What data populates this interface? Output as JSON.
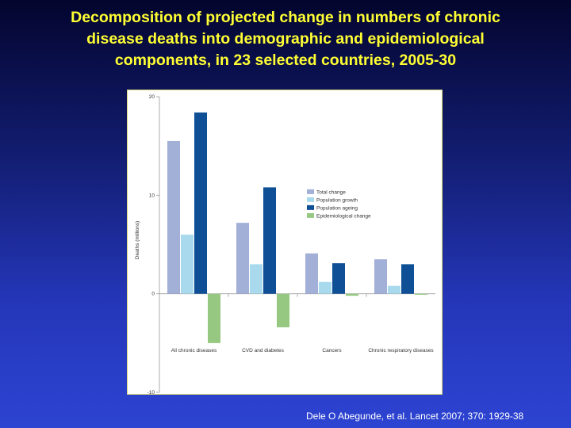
{
  "slide": {
    "title_lines": [
      "Decomposition of projected change in numbers of chronic",
      "disease deaths into demographic and epidemiological",
      "components, in 23 selected countries, 2005-30"
    ],
    "citation": "Dele O Abegunde, et al. Lancet 2007; 370: 1929-38"
  },
  "chart_data": {
    "type": "bar",
    "title": "",
    "xlabel": "",
    "ylabel": "Deaths (millions)",
    "ylim": [
      -10,
      20
    ],
    "yticks": [
      -10,
      0,
      10,
      20
    ],
    "grid": false,
    "legend_position": "right",
    "categories": [
      "All chronic diseases",
      "CVD and diabetes",
      "Cancers",
      "Chronic respiratory diseases"
    ],
    "series": [
      {
        "name": "Total change",
        "color": "#a2b0d8",
        "values": [
          15.5,
          7.2,
          4.1,
          3.5
        ]
      },
      {
        "name": "Population growth",
        "color": "#a9d9ec",
        "values": [
          6.0,
          3.0,
          1.2,
          0.8
        ]
      },
      {
        "name": "Population ageing",
        "color": "#0e4f96",
        "values": [
          18.4,
          10.8,
          3.1,
          3.0
        ]
      },
      {
        "name": "Epidemiological change",
        "color": "#96c882",
        "values": [
          -5.0,
          -3.4,
          -0.2,
          0
        ]
      }
    ]
  }
}
